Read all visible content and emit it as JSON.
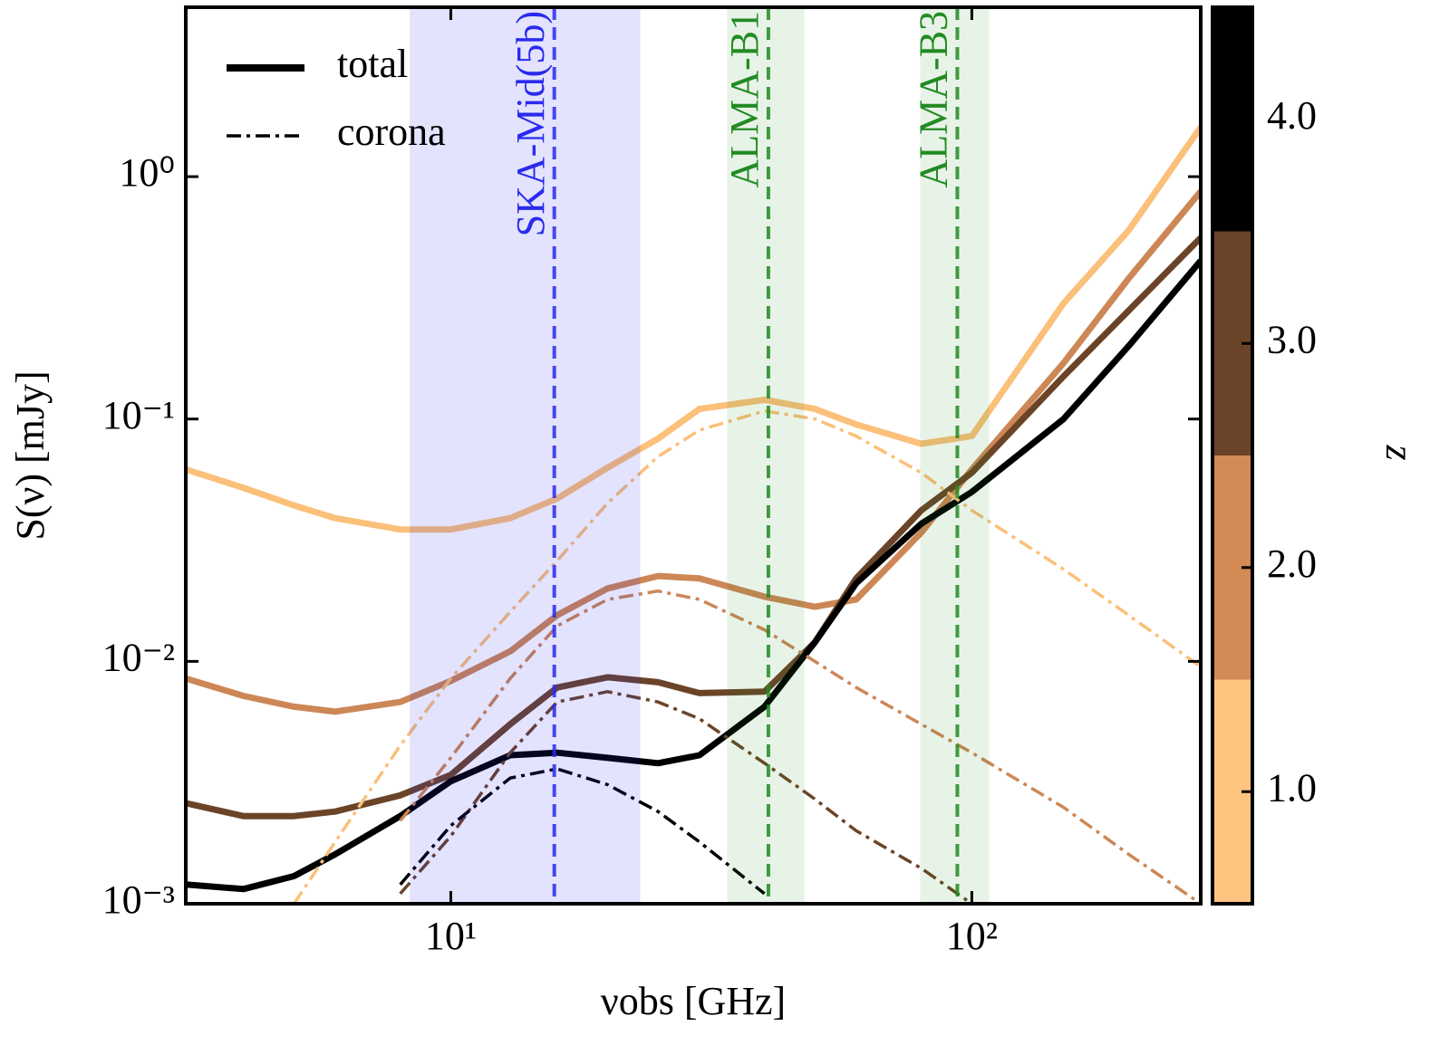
{
  "chart_data": {
    "type": "line",
    "xlabel": "νobs [GHz]",
    "ylabel": "S(ν) [mJy]",
    "xscale": "log",
    "yscale": "log",
    "xlim": [
      3.1,
      275
    ],
    "ylim": [
      0.001,
      5
    ],
    "xticks": [
      {
        "value": 10,
        "label": "10¹"
      },
      {
        "value": 100,
        "label": "10²"
      }
    ],
    "yticks": [
      {
        "value": 0.001,
        "label": "10⁻³"
      },
      {
        "value": 0.01,
        "label": "10⁻²"
      },
      {
        "value": 0.1,
        "label": "10⁻¹"
      },
      {
        "value": 1,
        "label": "10⁰"
      }
    ],
    "x": [
      3.1,
      4,
      5,
      6,
      8,
      10,
      13,
      16,
      20,
      25,
      30,
      40,
      50,
      60,
      80,
      100,
      150,
      200,
      275
    ],
    "series": [
      {
        "name": "total",
        "style": "solid",
        "z": 1,
        "color": "#fbc07a",
        "values": [
          0.062,
          0.052,
          0.044,
          0.039,
          0.035,
          0.035,
          0.039,
          0.047,
          0.063,
          0.083,
          0.11,
          0.12,
          0.11,
          0.095,
          0.079,
          0.085,
          0.3,
          0.6,
          1.6
        ]
      },
      {
        "name": "total",
        "style": "solid",
        "z": 2,
        "color": "#cd8756",
        "values": [
          0.0085,
          0.0072,
          0.0065,
          0.0062,
          0.0068,
          0.0083,
          0.011,
          0.0155,
          0.02,
          0.0225,
          0.022,
          0.0185,
          0.0168,
          0.018,
          0.034,
          0.062,
          0.17,
          0.38,
          0.87
        ]
      },
      {
        "name": "total",
        "style": "solid",
        "z": 3,
        "color": "#6b4428",
        "values": [
          0.0026,
          0.0023,
          0.0023,
          0.0024,
          0.0028,
          0.0034,
          0.0055,
          0.0078,
          0.0086,
          0.0082,
          0.0074,
          0.0075,
          0.012,
          0.022,
          0.042,
          0.06,
          0.15,
          0.28,
          0.56
        ]
      },
      {
        "name": "total",
        "style": "solid",
        "z": 4,
        "color": "#000000",
        "values": [
          0.0012,
          0.00115,
          0.0013,
          0.0016,
          0.0023,
          0.0032,
          0.0041,
          0.0042,
          0.004,
          0.0038,
          0.0041,
          0.0065,
          0.012,
          0.021,
          0.037,
          0.05,
          0.1,
          0.2,
          0.45
        ]
      },
      {
        "name": "corona",
        "style": "dashdot",
        "z": 1,
        "color": "#fbc07a",
        "values": [
          null,
          null,
          0.001,
          0.0018,
          0.0045,
          0.0085,
          0.016,
          0.026,
          0.045,
          0.07,
          0.09,
          0.108,
          0.1,
          0.085,
          0.06,
          0.042,
          0.024,
          0.0155,
          0.0095
        ]
      },
      {
        "name": "corona",
        "style": "dashdot",
        "z": 2,
        "color": "#cd8756",
        "values": [
          null,
          null,
          null,
          null,
          0.0022,
          0.004,
          0.0085,
          0.014,
          0.018,
          0.0195,
          0.018,
          0.0135,
          0.01,
          0.0078,
          0.0055,
          0.0042,
          0.0025,
          0.0016,
          0.001
        ]
      },
      {
        "name": "corona",
        "style": "dashdot",
        "z": 3,
        "color": "#6b4428",
        "values": [
          null,
          null,
          null,
          null,
          0.0011,
          0.0019,
          0.0042,
          0.0068,
          0.0075,
          0.0068,
          0.0058,
          0.0038,
          0.0027,
          0.002,
          0.0014,
          0.001,
          null,
          null,
          null
        ]
      },
      {
        "name": "corona",
        "style": "dashdot",
        "z": 4,
        "color": "#000000",
        "values": [
          null,
          null,
          null,
          null,
          0.0012,
          0.0021,
          0.0033,
          0.0036,
          0.0031,
          0.0024,
          0.0018,
          0.0011,
          null,
          null,
          null,
          null,
          null,
          null,
          null
        ]
      }
    ],
    "bands": [
      {
        "label": "SKA-Mid(5b)",
        "range": [
          8.34,
          23.1
        ],
        "center": 15.8,
        "color": "#2a2aee"
      },
      {
        "label": "ALMA-B1",
        "range": [
          33.9,
          47.7
        ],
        "center": 40.7,
        "color": "#228b22"
      },
      {
        "label": "ALMA-B3",
        "range": [
          79.6,
          108
        ],
        "center": 93.8,
        "color": "#228b22"
      }
    ],
    "legend": "upper left",
    "colorbar": {
      "label": "z",
      "lim": [
        0.5,
        4.5
      ],
      "ticks": [
        {
          "value": 1,
          "label": "1.0"
        },
        {
          "value": 2,
          "label": "2.0"
        },
        {
          "value": 3,
          "label": "3.0"
        },
        {
          "value": 4,
          "label": "4.0"
        }
      ],
      "colors": [
        "#fdc57f",
        "#d48a55",
        "#6b4328",
        "#000000"
      ]
    }
  }
}
